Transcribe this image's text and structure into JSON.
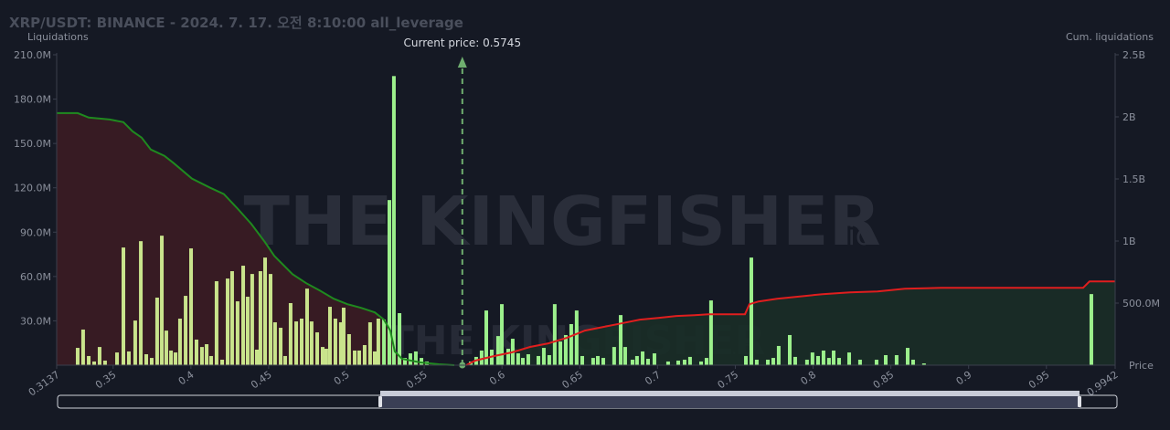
{
  "chart_data": {
    "type": "bar",
    "title": "XRP/USDT: BINANCE - 2024. 7. 17. 오전 8:10:00 all_leverage",
    "y_label": "Liquidations",
    "y2_label": "Cum. liquidations",
    "x_label": "Price",
    "annotation": {
      "value": 0.5745,
      "label": "Current price: 0.5745"
    },
    "watermark": [
      "THE KINGFISHER",
      ".io"
    ],
    "grid": false,
    "xlim": [
      0.3137,
      0.9942
    ],
    "xticks": [
      0.3137,
      0.35,
      0.4,
      0.45,
      0.5,
      0.55,
      0.6,
      0.65,
      0.7,
      0.75,
      0.8,
      0.85,
      0.9,
      0.95,
      0.9942
    ],
    "ylim": [
      0,
      210000000
    ],
    "yticks": [
      {
        "value": 30000000,
        "label": "30.0M"
      },
      {
        "value": 60000000,
        "label": "60.0M"
      },
      {
        "value": 90000000,
        "label": "90.0M"
      },
      {
        "value": 120000000,
        "label": "120.0M"
      },
      {
        "value": 150000000,
        "label": "150.0M"
      },
      {
        "value": 180000000,
        "label": "180.0M"
      },
      {
        "value": 210000000,
        "label": "210.0M"
      }
    ],
    "y2lim": [
      0,
      2500000000
    ],
    "y2ticks": [
      {
        "value": 500000000,
        "label": "500.0M"
      },
      {
        "value": 1000000000,
        "label": "1B"
      },
      {
        "value": 1500000000,
        "label": "1.5B"
      },
      {
        "value": 2000000000,
        "label": "2B"
      },
      {
        "value": 2500000000,
        "label": "2.5B"
      }
    ],
    "series": [
      {
        "type": "bar",
        "color": "#c9e48c",
        "x": [
          0.3272,
          0.3307,
          0.3343,
          0.3378,
          0.3413,
          0.3448,
          0.3525,
          0.3566,
          0.3601,
          0.3642,
          0.3678,
          0.3713,
          0.3748,
          0.3783,
          0.3813,
          0.3842,
          0.3872,
          0.3901,
          0.393,
          0.3966,
          0.4001,
          0.4036,
          0.4071,
          0.4101,
          0.413,
          0.4165,
          0.4201,
          0.4236,
          0.4265,
          0.43,
          0.4336,
          0.4365,
          0.4394,
          0.4424,
          0.4447,
          0.4477,
          0.4512,
          0.4541,
          0.4577,
          0.4606,
          0.4641,
          0.4677,
          0.4712,
          0.4747,
          0.4776,
          0.4812,
          0.4847,
          0.487,
          0.4894,
          0.4929,
          0.4964,
          0.4982,
          0.5017,
          0.5053,
          0.5082,
          0.5117,
          0.5152,
          0.5182,
          0.5205
        ],
        "values": [
          11700000,
          24100000,
          6200000,
          2500000,
          12300000,
          3100000,
          8600000,
          79600000,
          9300000,
          30200000,
          83900000,
          7400000,
          4900000,
          45700000,
          87600000,
          23400000,
          9900000,
          8600000,
          31500000,
          46900000,
          79000000,
          17300000,
          12300000,
          14200000,
          6200000,
          56800000,
          3700000,
          58600000,
          63600000,
          43200000,
          67300000,
          46300000,
          61700000,
          10500000,
          63600000,
          72800000,
          61700000,
          29000000,
          25300000,
          6200000,
          42000000,
          29600000,
          31500000,
          51800000,
          29600000,
          22200000,
          12300000,
          11100000,
          39500000,
          31500000,
          29000000,
          38900000,
          21000000,
          9900000,
          9900000,
          13600000,
          29000000,
          9300000,
          31500000
        ]
      },
      {
        "type": "bar",
        "color": "#9cf08c",
        "x": [
          0.5241,
          0.5276,
          0.5305,
          0.5341,
          0.5376,
          0.5411,
          0.5446,
          0.5482,
          0.5517,
          0.5799,
          0.5834,
          0.5869,
          0.5899,
          0.5934,
          0.5975,
          0.5999,
          0.604,
          0.6069,
          0.6104,
          0.6134,
          0.6169,
          0.6234,
          0.6269,
          0.6304,
          0.6339,
          0.6375,
          0.641,
          0.6445,
          0.648,
          0.6516,
          0.6586,
          0.6616,
          0.6651,
          0.6721,
          0.6763,
          0.6792,
          0.6839,
          0.6868,
          0.6904,
          0.6939,
          0.698,
          0.7068,
          0.7133,
          0.7174,
          0.7209,
          0.728,
          0.7315,
          0.7344,
          0.7568,
          0.7603,
          0.7638,
          0.7709,
          0.7744,
          0.7779,
          0.785,
          0.7885,
          0.7961,
          0.7996,
          0.8032,
          0.8067,
          0.8102,
          0.8132,
          0.8167,
          0.8232,
          0.8302,
          0.8408,
          0.8467,
          0.8537,
          0.8608,
          0.8643,
          0.8713,
          0.9789
        ],
        "values": [
          30900000,
          111700000,
          195600000,
          35200000,
          4900000,
          8000000,
          9300000,
          4900000,
          2500000,
          2500000,
          5600000,
          9900000,
          37000000,
          10500000,
          19700000,
          41300000,
          11100000,
          17900000,
          8000000,
          4900000,
          7400000,
          6200000,
          11700000,
          6800000,
          41300000,
          16000000,
          20400000,
          27800000,
          37000000,
          6200000,
          4900000,
          6200000,
          4900000,
          12300000,
          33900000,
          12300000,
          3700000,
          6200000,
          9300000,
          4300000,
          8000000,
          2500000,
          3100000,
          3700000,
          5600000,
          2500000,
          4900000,
          43800000,
          6200000,
          72800000,
          3700000,
          3700000,
          4900000,
          13000000,
          20400000,
          5600000,
          3700000,
          8600000,
          6200000,
          9900000,
          4900000,
          9900000,
          4900000,
          8600000,
          3700000,
          3700000,
          6800000,
          6800000,
          11700000,
          3700000,
          1200000,
          48100000
        ]
      },
      {
        "type": "line",
        "axis": "y2",
        "color": "#1f8a1f",
        "fill": "#3b1c24",
        "x": [
          0.3137,
          0.3272,
          0.3343,
          0.3478,
          0.3566,
          0.3625,
          0.3683,
          0.3742,
          0.383,
          0.3889,
          0.4007,
          0.4124,
          0.4212,
          0.43,
          0.4389,
          0.4477,
          0.4536,
          0.4653,
          0.4741,
          0.4829,
          0.4918,
          0.5006,
          0.5094,
          0.5182,
          0.5241,
          0.5282,
          0.5311,
          0.5358,
          0.5476,
          0.5593,
          0.5693
        ],
        "values": [
          2030000000,
          2030000000,
          1994000000,
          1979000000,
          1957000000,
          1884000000,
          1833000000,
          1737000000,
          1686000000,
          1627000000,
          1503000000,
          1429000000,
          1378000000,
          1261000000,
          1136000000,
          990000000,
          880000000,
          733000000,
          660000000,
          601000000,
          535000000,
          491000000,
          462000000,
          425000000,
          367000000,
          279000000,
          110000000,
          51000000,
          22000000,
          7000000,
          0
        ]
      },
      {
        "type": "line",
        "axis": "y2",
        "color": "#e01e1e",
        "fill": "#1a2d27",
        "x": [
          0.577,
          0.5828,
          0.5946,
          0.6063,
          0.6181,
          0.6298,
          0.6416,
          0.6533,
          0.6651,
          0.6768,
          0.6886,
          0.7004,
          0.7121,
          0.7239,
          0.7327,
          0.7562,
          0.7591,
          0.765,
          0.7768,
          0.7885,
          0.8061,
          0.8237,
          0.8414,
          0.859,
          0.8825,
          0.9736,
          0.9777,
          0.9942
        ],
        "values": [
          0,
          37000000,
          73000000,
          103000000,
          147000000,
          176000000,
          220000000,
          279000000,
          308000000,
          337000000,
          367000000,
          381000000,
          396000000,
          403000000,
          410000000,
          410000000,
          491000000,
          513000000,
          535000000,
          550000000,
          572000000,
          586000000,
          594000000,
          616000000,
          623000000,
          623000000,
          674000000,
          674000000
        ]
      }
    ]
  }
}
